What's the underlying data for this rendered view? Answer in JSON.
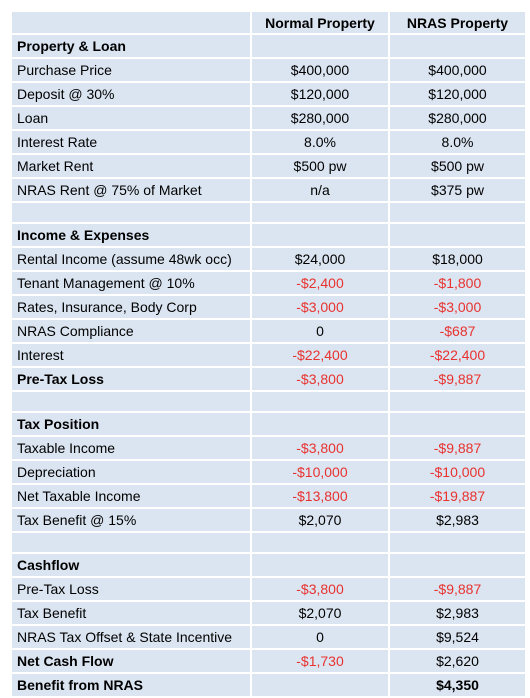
{
  "table": {
    "header": [
      "Normal Property",
      "NRAS Property"
    ],
    "rows": [
      {
        "style": "section",
        "cells": [
          "Property & Loan"
        ]
      },
      {
        "cells": [
          "Purchase Price",
          "$400,000",
          "$400,000"
        ]
      },
      {
        "cells": [
          "Deposit @ 30%",
          "$120,000",
          "$120,000"
        ]
      },
      {
        "cells": [
          "Loan",
          "$280,000",
          "$280,000"
        ]
      },
      {
        "cells": [
          "Interest Rate",
          "8.0%",
          "8.0%"
        ]
      },
      {
        "cells": [
          "Market Rent",
          "$500 pw",
          "$500 pw"
        ]
      },
      {
        "cells": [
          "NRAS Rent @ 75% of Market",
          "n/a",
          "$375 pw"
        ]
      },
      {
        "cells": []
      },
      {
        "style": "section",
        "cells": [
          "Income & Expenses"
        ]
      },
      {
        "cells": [
          "Rental Income (assume 48wk occ)",
          "$24,000",
          "$18,000"
        ]
      },
      {
        "cells": [
          "Tenant Management  @ 10%",
          "-$2,400",
          "-$1,800"
        ]
      },
      {
        "cells": [
          "Rates, Insurance, Body Corp",
          "-$3,000",
          "-$3,000"
        ]
      },
      {
        "cells": [
          "NRAS Compliance",
          "0",
          "-$687"
        ]
      },
      {
        "cells": [
          "Interest",
          "-$22,400",
          "-$22,400"
        ]
      },
      {
        "style": "total",
        "cells": [
          "Pre-Tax Loss",
          "-$3,800",
          "-$9,887"
        ]
      },
      {
        "cells": []
      },
      {
        "style": "section",
        "cells": [
          "Tax Position"
        ]
      },
      {
        "cells": [
          "Taxable Income",
          "-$3,800",
          "-$9,887"
        ]
      },
      {
        "cells": [
          "Depreciation",
          "-$10,000",
          "-$10,000"
        ]
      },
      {
        "cells": [
          "Net Taxable Income",
          "-$13,800",
          "-$19,887"
        ]
      },
      {
        "cells": [
          "Tax Benefit @ 15%",
          "$2,070",
          "$2,983"
        ]
      },
      {
        "cells": []
      },
      {
        "style": "section",
        "cells": [
          "Cashflow"
        ]
      },
      {
        "cells": [
          "Pre-Tax Loss",
          "-$3,800",
          "-$9,887"
        ]
      },
      {
        "cells": [
          "Tax Benefit",
          "$2,070",
          "$2,983"
        ]
      },
      {
        "cells": [
          "NRAS Tax Offset & State Incentive",
          "0",
          "$9,524"
        ]
      },
      {
        "style": "total",
        "cells": [
          "Net Cash Flow",
          "-$1,730",
          "$2,620"
        ]
      },
      {
        "style": "grand",
        "cells": [
          "Benefit from NRAS",
          null,
          "$4,350"
        ]
      }
    ]
  }
}
